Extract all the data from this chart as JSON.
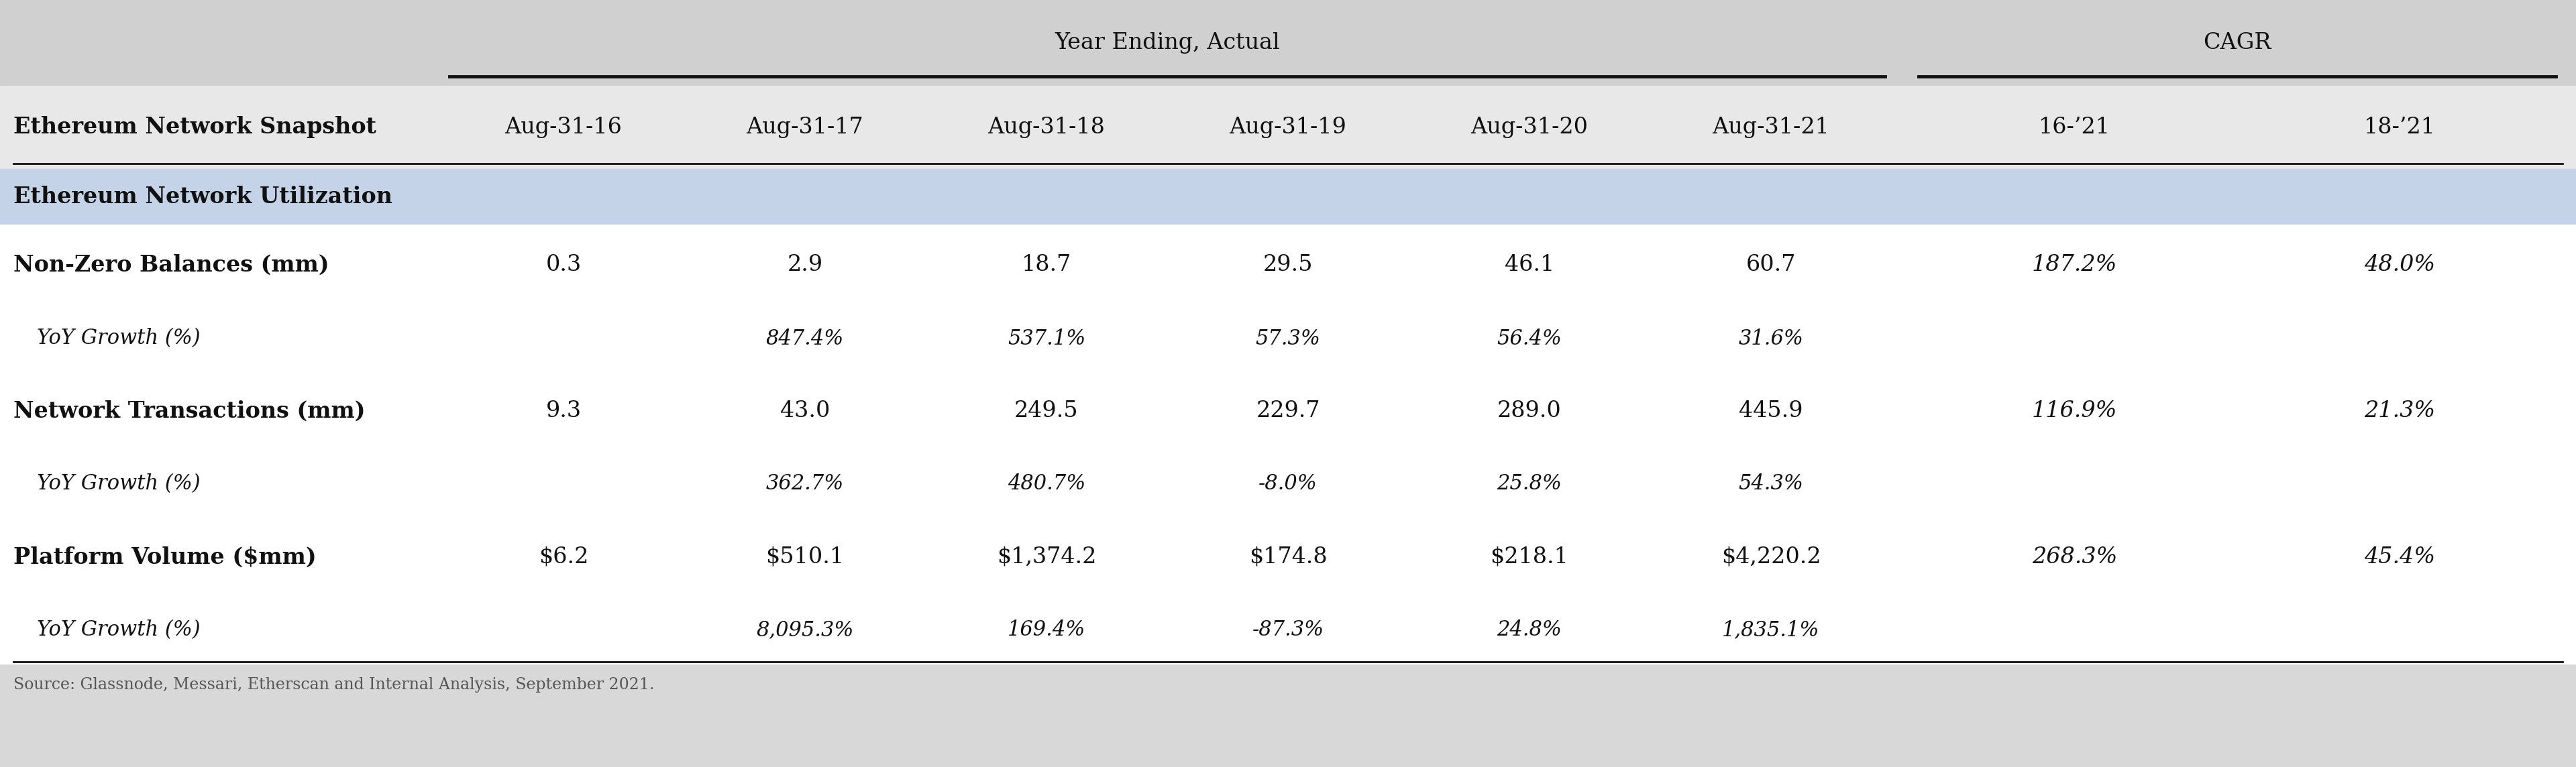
{
  "title_header": "Year Ending, Actual",
  "cagr_header": "CAGR",
  "col_header_label": "Ethereum Network Snapshot",
  "col_headers": [
    "Aug-31-16",
    "Aug-31-17",
    "Aug-31-18",
    "Aug-31-19",
    "Aug-31-20",
    "Aug-31-21"
  ],
  "cagr_headers": [
    "16-’21",
    "18-’21"
  ],
  "section_label": "Ethereum Network Utilization",
  "rows": [
    {
      "label": "Non-Zero Balances (mm)",
      "values": [
        "0.3",
        "2.9",
        "18.7",
        "29.5",
        "46.1",
        "60.7"
      ],
      "cagr": [
        "187.2%",
        "48.0%"
      ],
      "is_growth": false
    },
    {
      "label": "YoY Growth (%)",
      "values": [
        "",
        "847.4%",
        "537.1%",
        "57.3%",
        "56.4%",
        "31.6%"
      ],
      "cagr": [
        "",
        ""
      ],
      "is_growth": true
    },
    {
      "label": "Network Transactions (mm)",
      "values": [
        "9.3",
        "43.0",
        "249.5",
        "229.7",
        "289.0",
        "445.9"
      ],
      "cagr": [
        "116.9%",
        "21.3%"
      ],
      "is_growth": false
    },
    {
      "label": "YoY Growth (%)",
      "values": [
        "",
        "362.7%",
        "480.7%",
        "-8.0%",
        "25.8%",
        "54.3%"
      ],
      "cagr": [
        "",
        ""
      ],
      "is_growth": true
    },
    {
      "label": "Platform Volume ($mm)",
      "values": [
        "$6.2",
        "$510.1",
        "$1,374.2",
        "$174.8",
        "$218.1",
        "$4,220.2"
      ],
      "cagr": [
        "268.3%",
        "45.4%"
      ],
      "is_growth": false
    },
    {
      "label": "YoY Growth (%)",
      "values": [
        "",
        "8,095.3%",
        "169.4%",
        "-87.3%",
        "24.8%",
        "1,835.1%"
      ],
      "cagr": [
        "",
        ""
      ],
      "is_growth": true
    }
  ],
  "bg_color": "#d8d8d8",
  "white_bg": "#ffffff",
  "section_bg": "#c5d3e8",
  "header_bg": "#d0d0d0",
  "font_color": "#111111",
  "source_text": "Source: Glassnode, Messari, Etherscan and Internal Analysis, September 2021.",
  "font_size": 24,
  "header_font_size": 24,
  "small_font_size": 22
}
